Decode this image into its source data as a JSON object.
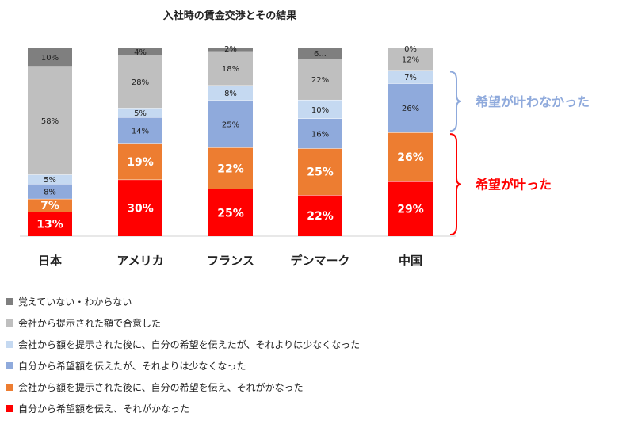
{
  "chart_data": {
    "type": "bar",
    "stacked": true,
    "title": "入社時の賃金交渉とその結果",
    "categories": [
      "日本",
      "アメリカ",
      "フランス",
      "デンマーク",
      "中国"
    ],
    "ylim": [
      0,
      100
    ],
    "grid": false,
    "legend_position": "bottom",
    "series": [
      {
        "name": "自分から希望額を伝え、それがかなった",
        "color": "#ff0000",
        "values": [
          13,
          30,
          25,
          22,
          29
        ],
        "labels": [
          "13%",
          "30%",
          "25%",
          "22%",
          "29%"
        ],
        "big": true,
        "label_color": "#ffffff"
      },
      {
        "name": "会社から額を提示された後に、自分の希望を伝え、それがかなった",
        "color": "#ed7d31",
        "values": [
          7,
          19,
          22,
          25,
          26
        ],
        "labels": [
          "7%",
          "19%",
          "22%",
          "25%",
          "26%"
        ],
        "big": true,
        "label_color": "#ffffff"
      },
      {
        "name": "自分から希望額を伝えたが、それよりは少なくなった",
        "color": "#8faadc",
        "values": [
          8,
          14,
          25,
          16,
          26
        ],
        "labels": [
          "8%",
          "14%",
          "25%",
          "16%",
          "26%"
        ],
        "big": false,
        "label_color": "#222222"
      },
      {
        "name": "会社から額を提示された後に、自分の希望を伝えたが、それよりは少なくなった",
        "color": "#c5d9f1",
        "values": [
          5,
          5,
          8,
          10,
          7
        ],
        "labels": [
          "5%",
          "5%",
          "8%",
          "10%",
          "7%"
        ],
        "big": false,
        "label_color": "#222222"
      },
      {
        "name": "会社から提示された額で合意した",
        "color": "#bfbfbf",
        "values": [
          58,
          28,
          18,
          22,
          12
        ],
        "labels": [
          "58%",
          "28%",
          "18%",
          "22%",
          "12%"
        ],
        "big": false,
        "label_color": "#222222"
      },
      {
        "name": "覚えていない・わからない",
        "color": "#7f7f7f",
        "values": [
          10,
          4,
          2,
          6,
          0
        ],
        "labels": [
          "10%",
          "4%",
          "2%",
          "6...",
          "0%"
        ],
        "big": false,
        "label_color": "#222222"
      }
    ],
    "annotations": [
      {
        "text": "希望が叶わなかった",
        "color": "#8faadc",
        "range_series": [
          2,
          3
        ]
      },
      {
        "text": "希望が叶った",
        "color": "#ff0000",
        "range_series": [
          0,
          1
        ]
      }
    ]
  }
}
